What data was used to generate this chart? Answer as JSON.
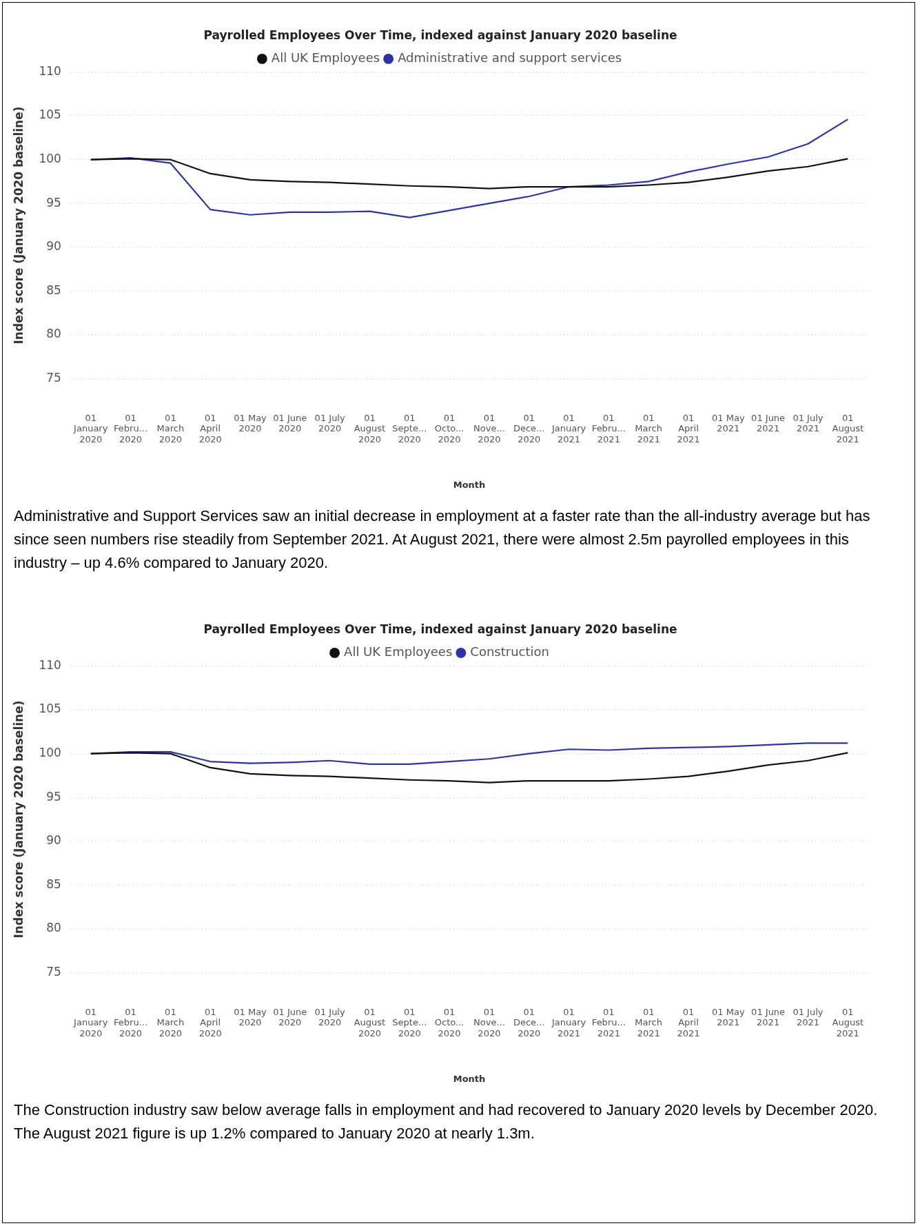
{
  "chart_data": [
    {
      "type": "line",
      "title": "Payrolled Employees Over Time, indexed against January 2020 baseline",
      "xlabel": "Month",
      "ylabel": "Index score (January 2020 baseline)",
      "categories": [
        "01 January 2020",
        "01 Febru... 2020",
        "01 March 2020",
        "01 April 2020",
        "01 May 2020",
        "01 June 2020",
        "01 July 2020",
        "01 August 2020",
        "01 Septe... 2020",
        "01 Octo... 2020",
        "01 Nove... 2020",
        "01 Dece... 2020",
        "01 January 2021",
        "01 Febru... 2021",
        "01 March 2021",
        "01 April 2021",
        "01 May 2021",
        "01 June 2021",
        "01 July 2021",
        "01 August 2021"
      ],
      "series": [
        {
          "name": "All UK Employees",
          "color": "#111111",
          "values": [
            100,
            100.1,
            100.0,
            98.4,
            97.7,
            97.5,
            97.4,
            97.2,
            97.0,
            96.9,
            96.7,
            96.9,
            96.9,
            96.9,
            97.1,
            97.4,
            98.0,
            98.7,
            99.2,
            100.1
          ]
        },
        {
          "name": "Administrative and support services",
          "color": "#2b33a6",
          "values": [
            100,
            100.2,
            99.6,
            94.3,
            93.7,
            94.0,
            94.0,
            94.1,
            93.4,
            94.2,
            95.0,
            95.8,
            96.9,
            97.1,
            97.5,
            98.6,
            99.5,
            100.3,
            101.8,
            104.6
          ]
        }
      ],
      "ylim": [
        75,
        110
      ],
      "yticks": [
        75,
        80,
        85,
        90,
        95,
        100,
        105,
        110
      ],
      "grid": "y",
      "legend": "top",
      "marker": "none",
      "line_style": "solid",
      "annotations": [
        "Administrative and Support Services saw an initial decrease in employment at a faster rate than the all-industry average but has since seen numbers rise steadily from September 2021. At August 2021, there were almost 2.5m payrolled employees in this industry – up 4.6% compared to January 2020."
      ]
    },
    {
      "type": "line",
      "title": "Payrolled Employees Over Time, indexed against January 2020 baseline",
      "xlabel": "Month",
      "ylabel": "Index score (January 2020 baseline)",
      "categories": [
        "01 January 2020",
        "01 Febru... 2020",
        "01 March 2020",
        "01 April 2020",
        "01 May 2020",
        "01 June 2020",
        "01 July 2020",
        "01 August 2020",
        "01 Septe... 2020",
        "01 Octo... 2020",
        "01 Nove... 2020",
        "01 Dece... 2020",
        "01 January 2021",
        "01 Febru... 2021",
        "01 March 2021",
        "01 April 2021",
        "01 May 2021",
        "01 June 2021",
        "01 July 2021",
        "01 August 2021"
      ],
      "series": [
        {
          "name": "All UK Employees",
          "color": "#111111",
          "values": [
            100,
            100.1,
            100.0,
            98.4,
            97.7,
            97.5,
            97.4,
            97.2,
            97.0,
            96.9,
            96.7,
            96.9,
            96.9,
            96.9,
            97.1,
            97.4,
            98.0,
            98.7,
            99.2,
            100.1
          ]
        },
        {
          "name": "Construction",
          "color": "#2b33a6",
          "values": [
            100,
            100.2,
            100.2,
            99.1,
            98.9,
            99.0,
            99.2,
            98.8,
            98.8,
            99.1,
            99.4,
            100.0,
            100.5,
            100.4,
            100.6,
            100.7,
            100.8,
            101.0,
            101.2,
            101.2
          ]
        }
      ],
      "ylim": [
        75,
        110
      ],
      "yticks": [
        75,
        80,
        85,
        90,
        95,
        100,
        105,
        110
      ],
      "grid": "y",
      "legend": "top",
      "marker": "none",
      "line_style": "solid",
      "annotations": [
        "The Construction industry saw below average falls in employment and had recovered to January 2020 levels by December 2020. The August 2021 figure is up 1.2% compared to January 2020 at nearly 1.3m."
      ]
    }
  ]
}
